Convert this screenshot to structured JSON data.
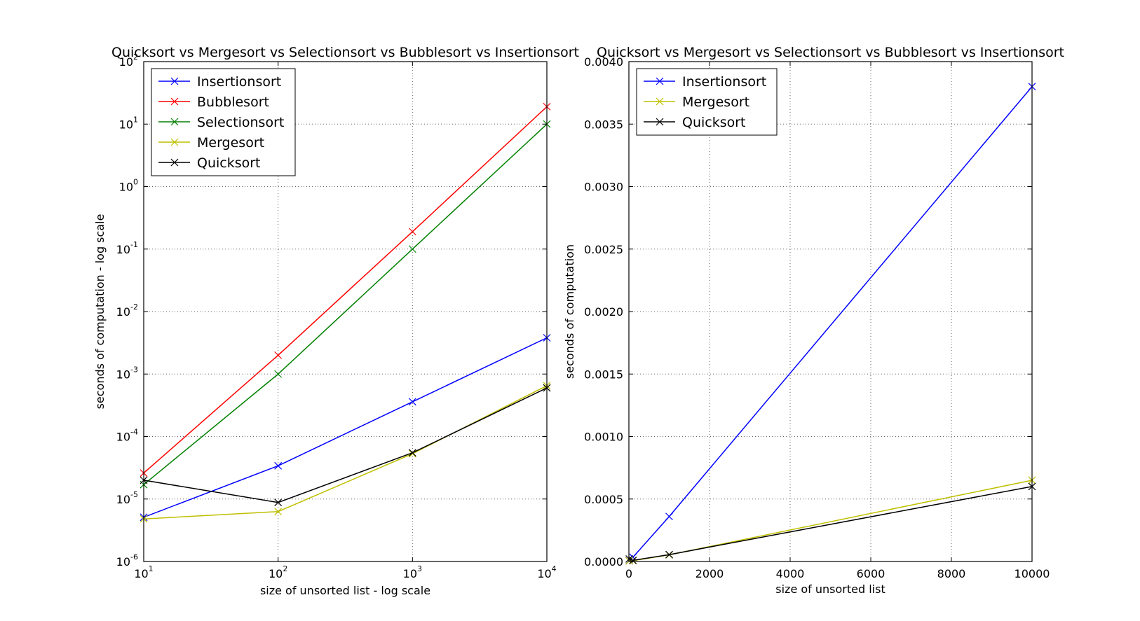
{
  "chart_data": [
    {
      "type": "line",
      "title": "Quicksort vs Mergesort vs Selectionsort vs Bubblesort vs Insertionsort",
      "xlabel": "size of unsorted list - log scale",
      "ylabel": "seconds of computation - log scale",
      "xscale": "log",
      "yscale": "log",
      "xlim": [
        10,
        10000
      ],
      "ylim": [
        1e-06,
        100
      ],
      "x_ticks": [
        {
          "base": "10",
          "exp": "1",
          "value": 10
        },
        {
          "base": "10",
          "exp": "2",
          "value": 100
        },
        {
          "base": "10",
          "exp": "3",
          "value": 1000
        },
        {
          "base": "10",
          "exp": "4",
          "value": 10000
        }
      ],
      "y_ticks": [
        {
          "base": "10",
          "exp": "-6",
          "value": 1e-06
        },
        {
          "base": "10",
          "exp": "-5",
          "value": 1e-05
        },
        {
          "base": "10",
          "exp": "-4",
          "value": 0.0001
        },
        {
          "base": "10",
          "exp": "-3",
          "value": 0.001
        },
        {
          "base": "10",
          "exp": "-2",
          "value": 0.01
        },
        {
          "base": "10",
          "exp": "-1",
          "value": 0.1
        },
        {
          "base": "10",
          "exp": "0",
          "value": 1
        },
        {
          "base": "10",
          "exp": "1",
          "value": 10
        },
        {
          "base": "10",
          "exp": "2",
          "value": 100
        }
      ],
      "grid": true,
      "legend_position": "top-left",
      "x": [
        10,
        100,
        1000,
        10000
      ],
      "series": [
        {
          "name": "Insertionsort",
          "color": "#0000ff",
          "values": [
            5.1e-06,
            3.4e-05,
            0.00036,
            0.0038
          ]
        },
        {
          "name": "Bubblesort",
          "color": "#ff0000",
          "values": [
            2.6e-05,
            0.002,
            0.19,
            19
          ]
        },
        {
          "name": "Selectionsort",
          "color": "#008000",
          "values": [
            1.7e-05,
            0.001,
            0.1,
            10
          ]
        },
        {
          "name": "Mergesort",
          "color": "#bfbf00",
          "values": [
            4.8e-06,
            6.3e-06,
            5.3e-05,
            0.00065
          ]
        },
        {
          "name": "Quicksort",
          "color": "#000000",
          "values": [
            2e-05,
            8.8e-06,
            5.5e-05,
            0.0006
          ]
        }
      ]
    },
    {
      "type": "line",
      "title": "Quicksort vs Mergesort vs Selectionsort vs Bubblesort vs Insertionsort",
      "xlabel": "size of unsorted list",
      "ylabel": "seconds of computation",
      "xscale": "linear",
      "yscale": "linear",
      "xlim": [
        0,
        10000
      ],
      "ylim": [
        0,
        0.004
      ],
      "x_ticks": [
        "0",
        "2000",
        "4000",
        "6000",
        "8000",
        "10000"
      ],
      "y_ticks": [
        "0.0000",
        "0.0005",
        "0.0010",
        "0.0015",
        "0.0020",
        "0.0025",
        "0.0030",
        "0.0035",
        "0.0040"
      ],
      "grid": true,
      "legend_position": "top-left",
      "x": [
        10,
        100,
        1000,
        10000
      ],
      "series": [
        {
          "name": "Insertionsort",
          "color": "#0000ff",
          "values": [
            5.1e-06,
            3.4e-05,
            0.00036,
            0.0038
          ]
        },
        {
          "name": "Mergesort",
          "color": "#bfbf00",
          "values": [
            4.8e-06,
            6.3e-06,
            5.3e-05,
            0.00065
          ]
        },
        {
          "name": "Quicksort",
          "color": "#000000",
          "values": [
            2e-05,
            8.8e-06,
            5.5e-05,
            0.0006
          ]
        }
      ]
    }
  ]
}
